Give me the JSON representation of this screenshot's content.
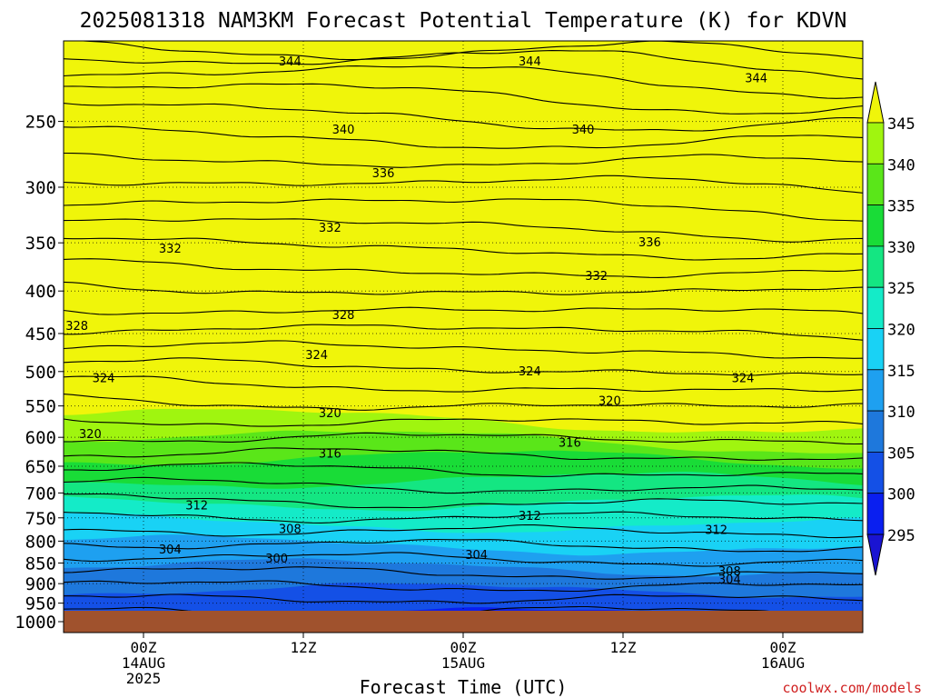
{
  "chart_data": {
    "type": "contour",
    "title": "2025081318 NAM3KM Forecast Potential Temperature (K) for KDVN",
    "xlabel": "Forecast Time (UTC)",
    "ylabel": "",
    "credit": "coolwx.com/models",
    "y_axis": {
      "scale": "log",
      "range_hpa": [
        200,
        1000
      ],
      "ticks": [
        "250",
        "300",
        "350",
        "400",
        "450",
        "500",
        "550",
        "600",
        "650",
        "700",
        "750",
        "800",
        "850",
        "900",
        "950",
        "1000"
      ]
    },
    "x_axis": {
      "range": [
        "2025-08-13T18Z",
        "2025-08-16T06Z"
      ],
      "ticks": [
        {
          "time": "2025-08-14T00Z",
          "lines": [
            "00Z",
            "14AUG",
            "2025"
          ]
        },
        {
          "time": "2025-08-14T12Z",
          "lines": [
            "12Z"
          ]
        },
        {
          "time": "2025-08-15T00Z",
          "lines": [
            "00Z",
            "15AUG"
          ]
        },
        {
          "time": "2025-08-15T12Z",
          "lines": [
            "12Z"
          ]
        },
        {
          "time": "2025-08-16T00Z",
          "lines": [
            "00Z",
            "16AUG"
          ]
        }
      ]
    },
    "grid": "dotted",
    "colorbar": {
      "labels": [
        "295",
        "300",
        "305",
        "310",
        "315",
        "320",
        "325",
        "330",
        "335",
        "340",
        "345"
      ],
      "colors": [
        "#1a14d2",
        "#0a1ff0",
        "#1450e6",
        "#1e78dc",
        "#1ea0f0",
        "#19d2f5",
        "#14ebc8",
        "#14e682",
        "#19dc37",
        "#5ae619",
        "#a0f50f",
        "#f0f50a"
      ],
      "placement": "right"
    },
    "contour_labels": [
      {
        "value": "344",
        "time": "2025-08-14T11Z",
        "hpa": 212
      },
      {
        "value": "344",
        "time": "2025-08-15T05Z",
        "hpa": 212
      },
      {
        "value": "344",
        "time": "2025-08-15T22Z",
        "hpa": 222
      },
      {
        "value": "340",
        "time": "2025-08-14T15Z",
        "hpa": 256
      },
      {
        "value": "340",
        "time": "2025-08-15T09Z",
        "hpa": 256
      },
      {
        "value": "336",
        "time": "2025-08-14T18Z",
        "hpa": 289
      },
      {
        "value": "336",
        "time": "2025-08-15T14Z",
        "hpa": 350
      },
      {
        "value": "332",
        "time": "2025-08-14T02Z",
        "hpa": 356
      },
      {
        "value": "332",
        "time": "2025-08-14T14Z",
        "hpa": 336
      },
      {
        "value": "332",
        "time": "2025-08-15T10Z",
        "hpa": 384
      },
      {
        "value": "328",
        "time": "2025-08-13T19Z",
        "hpa": 441
      },
      {
        "value": "328",
        "time": "2025-08-14T15Z",
        "hpa": 428
      },
      {
        "value": "324",
        "time": "2025-08-13T21Z",
        "hpa": 510
      },
      {
        "value": "324",
        "time": "2025-08-14T13Z",
        "hpa": 478
      },
      {
        "value": "324",
        "time": "2025-08-15T05Z",
        "hpa": 500
      },
      {
        "value": "324",
        "time": "2025-08-15T21Z",
        "hpa": 510
      },
      {
        "value": "320",
        "time": "2025-08-13T20Z",
        "hpa": 595
      },
      {
        "value": "320",
        "time": "2025-08-14T14Z",
        "hpa": 562
      },
      {
        "value": "320",
        "time": "2025-08-15T11Z",
        "hpa": 543
      },
      {
        "value": "316",
        "time": "2025-08-14T14Z",
        "hpa": 628
      },
      {
        "value": "316",
        "time": "2025-08-15T08Z",
        "hpa": 610
      },
      {
        "value": "312",
        "time": "2025-08-14T04Z",
        "hpa": 725
      },
      {
        "value": "312",
        "time": "2025-08-15T05Z",
        "hpa": 747
      },
      {
        "value": "312",
        "time": "2025-08-15T19Z",
        "hpa": 776
      },
      {
        "value": "308",
        "time": "2025-08-14T11Z",
        "hpa": 774
      },
      {
        "value": "308",
        "time": "2025-08-15T20Z",
        "hpa": 871
      },
      {
        "value": "304",
        "time": "2025-08-14T02Z",
        "hpa": 820
      },
      {
        "value": "304",
        "time": "2025-08-15T01Z",
        "hpa": 832
      },
      {
        "value": "304",
        "time": "2025-08-15T20Z",
        "hpa": 891
      },
      {
        "value": "300",
        "time": "2025-08-14T10Z",
        "hpa": 840
      }
    ]
  }
}
